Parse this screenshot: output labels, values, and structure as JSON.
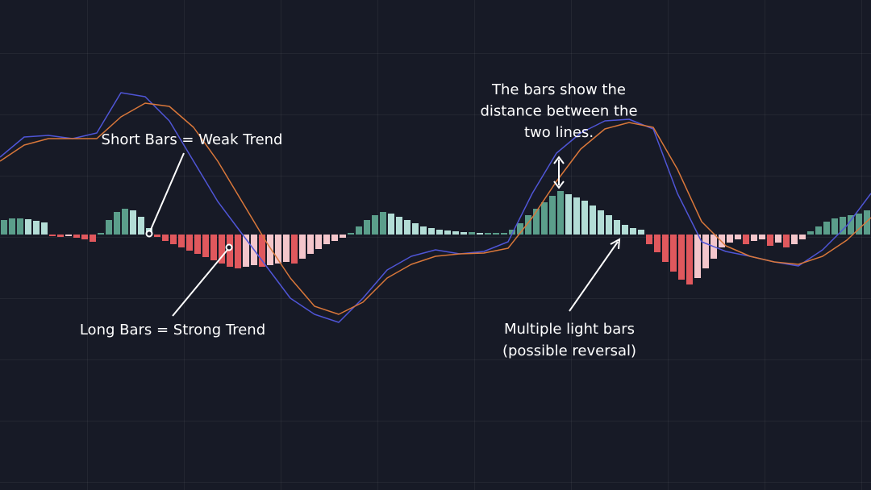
{
  "chart_data": {
    "type": "macd",
    "xlim": [
      0,
      108
    ],
    "ylim": [
      -317,
      291
    ],
    "histogram": {
      "values": [
        18,
        20,
        20,
        19,
        17,
        15,
        -2,
        -3,
        -2,
        -4,
        -6,
        -9,
        2,
        18,
        28,
        32,
        30,
        22,
        8,
        -3,
        -8,
        -12,
        -16,
        -20,
        -24,
        -28,
        -32,
        -36,
        -40,
        -42,
        -40,
        -38,
        -40,
        -38,
        -36,
        -34,
        -36,
        -30,
        -24,
        -18,
        -12,
        -8,
        -4,
        2,
        10,
        18,
        24,
        28,
        26,
        22,
        18,
        14,
        10,
        8,
        6,
        5,
        4,
        3,
        3,
        2,
        2,
        2,
        2,
        6,
        14,
        24,
        32,
        40,
        48,
        54,
        50,
        46,
        42,
        36,
        30,
        24,
        18,
        12,
        8,
        6,
        -12,
        -22,
        -34,
        -46,
        -56,
        -62,
        -54,
        -42,
        -30,
        -16,
        -10,
        -6,
        -12,
        -8,
        -6,
        -14,
        -10,
        -16,
        -12,
        -6,
        4,
        10,
        16,
        20,
        22,
        24,
        26,
        30
      ],
      "colors": {
        "rising_positive": "#5b9e8b",
        "falling_positive": "#b3ddd6",
        "falling_negative": "#e0585d",
        "rising_negative": "#f4c6cb"
      }
    },
    "x": [
      0,
      3,
      6,
      9,
      12,
      15,
      18,
      21,
      24,
      27,
      30,
      33,
      36,
      39,
      42,
      45,
      48,
      51,
      54,
      57,
      60,
      63,
      66,
      69,
      72,
      75,
      78,
      81,
      84,
      87,
      90,
      93,
      96,
      99,
      102,
      105,
      108
    ],
    "series": [
      {
        "color": "#4f55d6",
        "values": [
          96,
          121,
          123,
          119,
          126,
          176,
          171,
          141,
          91,
          41,
          1,
          -39,
          -79,
          -99,
          -109,
          -79,
          -44,
          -27,
          -19,
          -24,
          -21,
          -9,
          51,
          101,
          126,
          141,
          143,
          131,
          51,
          -9,
          -21,
          -27,
          -34,
          -39,
          -19,
          11,
          51
        ]
      },
      {
        "color": "#d9773a",
        "values": [
          91,
          111,
          119,
          119,
          119,
          146,
          163,
          159,
          133,
          91,
          41,
          -9,
          -54,
          -89,
          -99,
          -84,
          -54,
          -37,
          -27,
          -24,
          -23,
          -17,
          21,
          66,
          106,
          131,
          139,
          133,
          81,
          16,
          -14,
          -27,
          -34,
          -37,
          -27,
          -7,
          21
        ]
      }
    ],
    "annotations": [
      {
        "lines": [
          "Short Bars = Weak Trend"
        ]
      },
      {
        "lines": [
          "Long Bars = Strong Trend"
        ]
      },
      {
        "lines": [
          "The bars show the",
          "distance between the",
          "two lines."
        ]
      },
      {
        "lines": [
          "Multiple light bars",
          "(possible reversal)"
        ]
      }
    ]
  }
}
